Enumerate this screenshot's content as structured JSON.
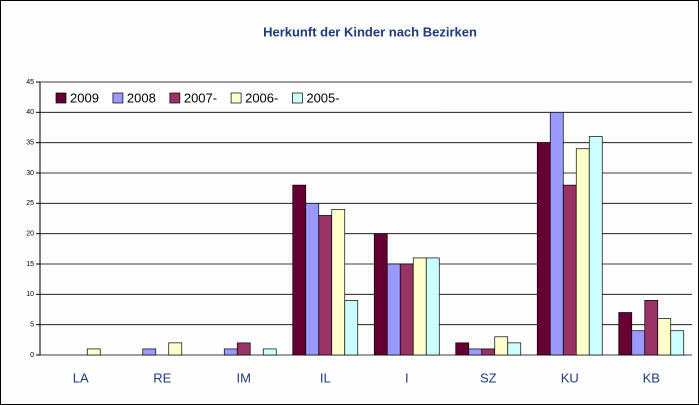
{
  "chart_data": {
    "type": "bar",
    "title": "Herkunft der Kinder nach Bezirken",
    "categories": [
      "LA",
      "RE",
      "IM",
      "IL",
      "I",
      "SZ",
      "KU",
      "KB"
    ],
    "series": [
      {
        "name": "2009",
        "color": "#660033",
        "values": [
          0,
          0,
          0,
          28,
          20,
          2,
          35,
          7
        ]
      },
      {
        "name": "2008",
        "color": "#9999ff",
        "values": [
          0,
          1,
          1,
          25,
          15,
          1,
          40,
          4
        ]
      },
      {
        "name": "2007-",
        "color": "#993366",
        "values": [
          0,
          0,
          2,
          23,
          15,
          1,
          28,
          9
        ]
      },
      {
        "name": "2006-",
        "color": "#ffffcc",
        "values": [
          1,
          2,
          0,
          24,
          16,
          3,
          34,
          6
        ]
      },
      {
        "name": "2005-",
        "color": "#ccffff",
        "values": [
          0,
          0,
          1,
          9,
          16,
          2,
          36,
          4
        ]
      }
    ],
    "ylim": [
      0,
      45
    ],
    "yticks": [
      0,
      5,
      10,
      15,
      20,
      25,
      30,
      35,
      40,
      45
    ],
    "grid": true,
    "legend": "top-left"
  }
}
